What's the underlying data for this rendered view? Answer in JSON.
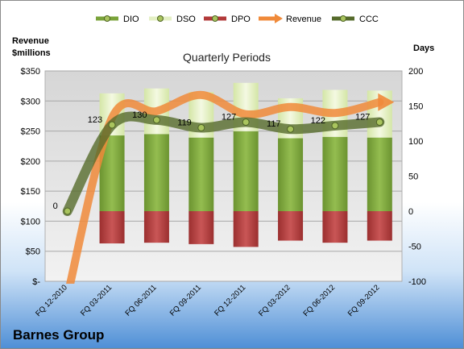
{
  "chart_data": {
    "type": "bar",
    "title": "Quarterly Periods",
    "left_axis_label": "Revenue $millions",
    "right_axis_label": "Days",
    "company": "Barnes Group",
    "categories": [
      "FQ 12-2010",
      "FQ 03-2011",
      "FQ 06-2011",
      "FQ 09-2011",
      "FQ 12-2011",
      "FQ 03-2012",
      "FQ 06-2012",
      "FQ 09-2012"
    ],
    "y_left": {
      "min": 0,
      "max": 350,
      "ticks": [
        "$-",
        "$50",
        "$100",
        "$150",
        "$200",
        "$250",
        "$300",
        "$350"
      ]
    },
    "y_right": {
      "min": -100,
      "max": 200,
      "ticks": [
        "-100",
        "-50",
        "0",
        "50",
        "100",
        "150",
        "200"
      ]
    },
    "series": [
      {
        "name": "DIO",
        "axis": "right",
        "kind": "stacked-bar",
        "color": "#7aa33a",
        "values": [
          null,
          108,
          110,
          105,
          114,
          104,
          106,
          105
        ]
      },
      {
        "name": "DSO",
        "axis": "right",
        "kind": "stacked-bar",
        "color": "#e4f0c4",
        "values": [
          null,
          60,
          65,
          65,
          69,
          57,
          67,
          67
        ]
      },
      {
        "name": "DPO",
        "axis": "right",
        "kind": "stacked-bar-negative",
        "color": "#b23a3a",
        "values": [
          null,
          -46,
          -45,
          -47,
          -51,
          -42,
          -45,
          -42
        ]
      },
      {
        "name": "Revenue",
        "axis": "left",
        "kind": "line",
        "color": "#f08a3a",
        "values": [
          -30,
          272,
          283,
          310,
          278,
          290,
          280,
          298
        ]
      },
      {
        "name": "CCC",
        "axis": "right",
        "kind": "line",
        "color": "#566b2c",
        "values": [
          0,
          123,
          130,
          119,
          127,
          117,
          122,
          127
        ],
        "labels": [
          "0",
          "123",
          "130",
          "119",
          "127",
          "117",
          "122",
          "127"
        ]
      }
    ],
    "legend_position": "top",
    "grid": true
  }
}
